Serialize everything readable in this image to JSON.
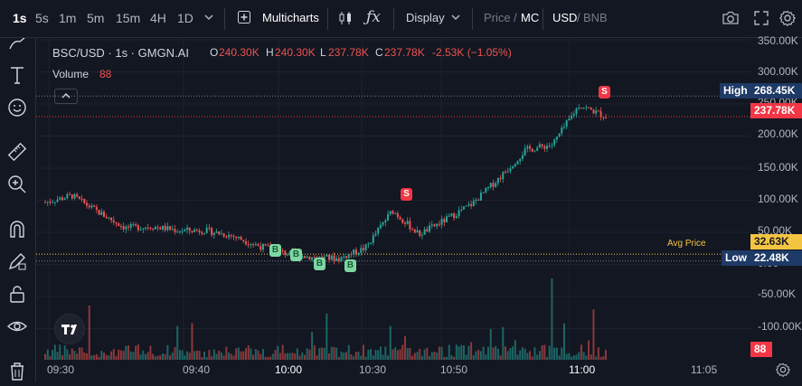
{
  "toolbar": {
    "intervals": [
      "1s",
      "5s",
      "1m",
      "5m",
      "15m",
      "4H",
      "1D"
    ],
    "active_interval": "1s",
    "multicharts_label": "Multicharts",
    "display_label": "Display",
    "price_label": "Price",
    "price_sep": "/",
    "mc_label": "MC",
    "usd_label": "USD",
    "quote_sep": "/",
    "bnb_label": "BNB"
  },
  "legend": {
    "symbol": "BSC/USD · 1s · GMGN.AI",
    "o_label": "O",
    "o_value": "240.30K",
    "h_label": "H",
    "h_value": "240.30K",
    "l_label": "L",
    "l_value": "237.78K",
    "c_label": "C",
    "c_value": "237.78K",
    "change": "-2.53K (−1.05%)",
    "volume_label": "Volume",
    "volume_value": "88"
  },
  "price_axis": {
    "ticks": [
      "350.00K",
      "300.00K",
      "250.00K",
      "200.00K",
      "150.00K",
      "100.00K",
      "50.00K",
      "0.00",
      "-50.00K",
      "-100.00K"
    ],
    "high_label": "High",
    "high_value": "268.45K",
    "last_value": "237.78K",
    "avg_label": "Avg Price",
    "avg_value": "32.63K",
    "low_label": "Low",
    "low_value": "22.48K",
    "volume_badge": "88"
  },
  "time_axis": {
    "ticks": [
      "09:30",
      "09:40",
      "10:00",
      "10:30",
      "10:50",
      "11:00",
      "11:05"
    ]
  },
  "markers": [
    "B",
    "B",
    "B",
    "B",
    "S",
    "S"
  ],
  "colors": {
    "up": "#26a69a",
    "down": "#ef5350",
    "background": "#131722",
    "high_badge": "#1e3a66",
    "avg_badge": "#f5c542",
    "last_badge": "#f23645"
  },
  "chart_data": {
    "type": "candlestick",
    "x": [
      "09:30",
      "09:35",
      "09:40",
      "09:45",
      "09:50",
      "09:55",
      "10:00",
      "10:05",
      "10:10",
      "10:15",
      "10:20",
      "10:25",
      "10:30",
      "10:35",
      "10:40",
      "10:45",
      "10:50",
      "10:55",
      "11:00",
      "11:02",
      "11:04",
      "11:05"
    ],
    "close": [
      110,
      120,
      95,
      72,
      74,
      68,
      68,
      60,
      45,
      34,
      28,
      26,
      42,
      98,
      62,
      84,
      108,
      146,
      188,
      196,
      255,
      238
    ],
    "ylabel": "",
    "ylim": [
      -110,
      355
    ],
    "y_unit": "K"
  }
}
